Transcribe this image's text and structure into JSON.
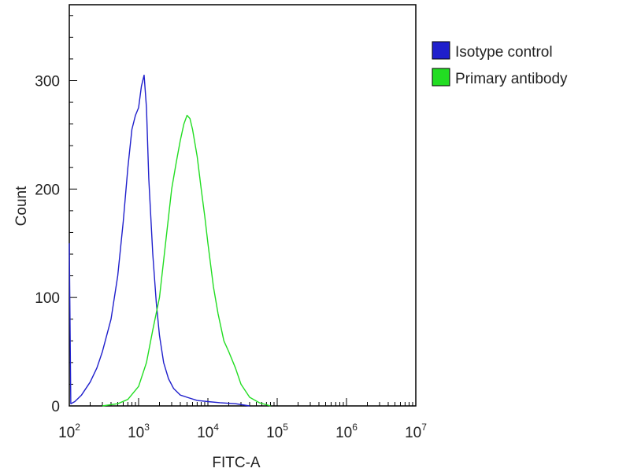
{
  "chart_data": {
    "type": "line",
    "title": "",
    "xlabel": "FITC-A",
    "ylabel": "Count",
    "xscale": "log",
    "xlim": [
      100,
      10000000
    ],
    "ylim": [
      0,
      370
    ],
    "x_ticks": [
      {
        "base": "10",
        "exp": "2",
        "value": 100
      },
      {
        "base": "10",
        "exp": "3",
        "value": 1000
      },
      {
        "base": "10",
        "exp": "4",
        "value": 10000
      },
      {
        "base": "10",
        "exp": "5",
        "value": 100000
      },
      {
        "base": "10",
        "exp": "6",
        "value": 1000000
      },
      {
        "base": "10",
        "exp": "7",
        "value": 10000000
      }
    ],
    "y_ticks": [
      {
        "label": "0",
        "value": 0
      },
      {
        "label": "100",
        "value": 100
      },
      {
        "label": "200",
        "value": 200
      },
      {
        "label": "300",
        "value": 300
      }
    ],
    "grid": false,
    "legend_position": "right",
    "series": [
      {
        "name": "Isotype control",
        "color": "#1f1fcc",
        "x": [
          100,
          105,
          120,
          150,
          200,
          250,
          300,
          400,
          500,
          600,
          700,
          800,
          900,
          1000,
          1100,
          1200,
          1300,
          1400,
          1600,
          1800,
          2000,
          2300,
          2700,
          3200,
          4000,
          5000,
          7000,
          10000,
          15000,
          25000,
          40000
        ],
        "y": [
          150,
          2,
          4,
          10,
          22,
          35,
          50,
          80,
          120,
          170,
          220,
          255,
          268,
          275,
          295,
          305,
          275,
          210,
          140,
          95,
          65,
          40,
          25,
          16,
          10,
          8,
          5,
          4,
          3,
          2,
          0
        ]
      },
      {
        "name": "Primary antibody",
        "color": "#22dd22",
        "x": [
          300,
          500,
          700,
          1000,
          1300,
          1600,
          2000,
          2500,
          3000,
          3500,
          4000,
          4500,
          5000,
          5500,
          6000,
          7000,
          8000,
          9000,
          10000,
          12000,
          14000,
          17000,
          20000,
          25000,
          30000,
          40000,
          55000,
          80000
        ],
        "y": [
          0,
          2,
          6,
          18,
          40,
          70,
          100,
          155,
          200,
          225,
          245,
          260,
          268,
          265,
          255,
          230,
          200,
          175,
          150,
          110,
          85,
          60,
          50,
          35,
          20,
          8,
          3,
          0
        ]
      }
    ]
  }
}
